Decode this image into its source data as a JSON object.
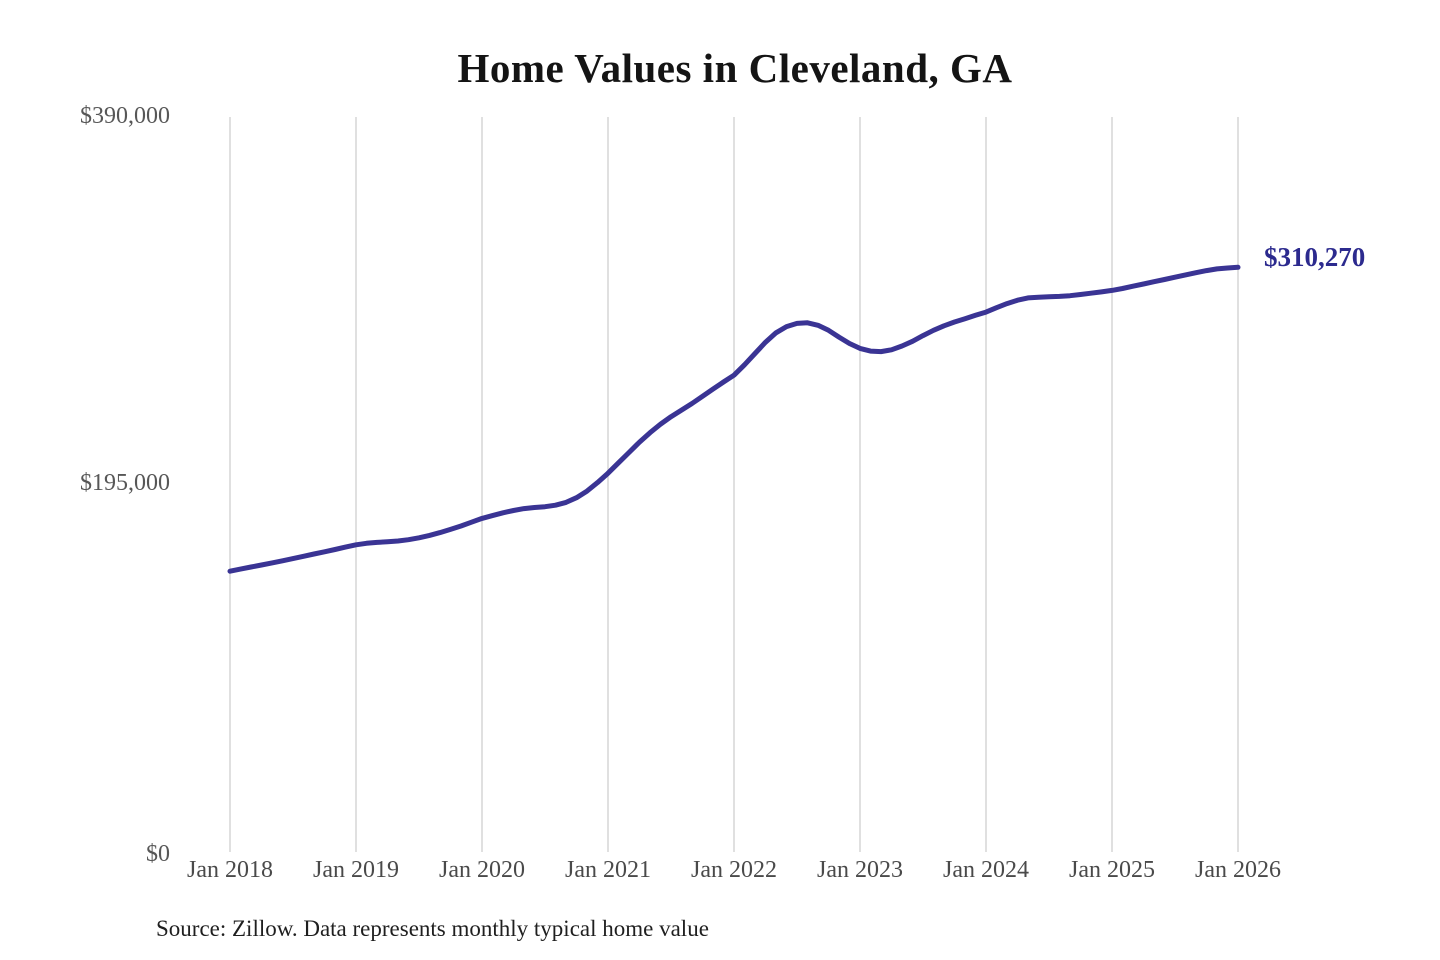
{
  "chart": {
    "title": "Home Values in Cleveland, GA",
    "source": "Source: Zillow. Data represents monthly typical home value"
  },
  "chart_data": {
    "type": "line",
    "title": "Home Values in Cleveland, GA",
    "xlabel": "",
    "ylabel": "",
    "ylim": [
      0,
      390000
    ],
    "grid": "vertical-only",
    "x_labels": [
      "Jan 2018",
      "Jan 2019",
      "Jan 2020",
      "Jan 2021",
      "Jan 2022",
      "Jan 2023",
      "Jan 2024",
      "Jan 2025",
      "Jan 2026"
    ],
    "yticks": [
      {
        "label": "$0",
        "value": 0
      },
      {
        "label": "$195,000",
        "value": 195000
      },
      {
        "label": "$390,000",
        "value": 390000
      }
    ],
    "end_label": "$310,270",
    "end_value": 310270,
    "series": [
      {
        "name": "Typical home value",
        "start": "Jan 2018",
        "interval": "monthly",
        "values": [
          149000,
          150100,
          151200,
          152300,
          153400,
          154500,
          155700,
          156900,
          158100,
          159300,
          160500,
          161800,
          163000,
          163800,
          164300,
          164600,
          165000,
          165700,
          166700,
          168000,
          169500,
          171200,
          173000,
          175000,
          177000,
          178500,
          180000,
          181200,
          182200,
          182800,
          183200,
          184000,
          185500,
          188000,
          191500,
          196000,
          201000,
          206500,
          212000,
          217500,
          222500,
          227000,
          231000,
          234500,
          238000,
          241800,
          245600,
          249400,
          253000,
          258500,
          264500,
          270500,
          275500,
          278800,
          280500,
          280800,
          279500,
          276800,
          273200,
          269800,
          267200,
          265800,
          265500,
          266500,
          268500,
          271000,
          274000,
          276800,
          279200,
          281200,
          283000,
          284800,
          286500,
          288800,
          291000,
          292800,
          294000,
          294400,
          294600,
          294800,
          295200,
          295800,
          296500,
          297200,
          298000,
          299000,
          300200,
          301400,
          302600,
          303800,
          305000,
          306200,
          307400,
          308500,
          309400,
          309900,
          310270
        ]
      }
    ],
    "colors": {
      "line": "#3a3494",
      "annotation": "#2c2a8e",
      "gridline": "#cbcbcb",
      "axis_text": "#575757",
      "title_text": "#141414"
    },
    "legend": "none"
  }
}
